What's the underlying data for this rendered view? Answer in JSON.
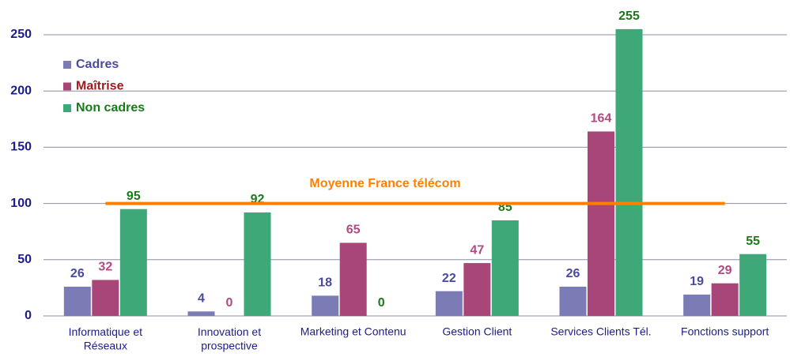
{
  "chart_data": {
    "type": "bar",
    "categories": [
      "Informatique et\nRéseaux",
      "Innovation et\nprospective",
      "Marketing et Contenu",
      "Gestion Client",
      "Services Clients Tél.",
      "Fonctions support"
    ],
    "series": [
      {
        "name": "Cadres",
        "color": "#7b7bb5",
        "label_color": "#4a4a9e",
        "values": [
          26,
          4,
          18,
          22,
          26,
          19
        ]
      },
      {
        "name": "Maîtrise",
        "color": "#a8467a",
        "label_color": "#b04a80",
        "legend_color": "#a01c1c",
        "values": [
          32,
          0,
          65,
          47,
          164,
          29
        ]
      },
      {
        "name": "Non cadres",
        "color": "#3fa878",
        "label_color": "#1a7a1a",
        "values": [
          95,
          92,
          0,
          85,
          255,
          55
        ]
      }
    ],
    "reference_line": {
      "label": "Moyenne France télécom",
      "value": 100,
      "color": "#ff8000"
    },
    "ylim": [
      0,
      250
    ],
    "yticks": [
      0,
      50,
      100,
      150,
      200,
      250
    ],
    "grid": true,
    "legend": "upper left"
  }
}
